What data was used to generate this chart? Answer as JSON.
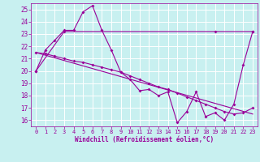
{
  "xlabel": "Windchill (Refroidissement éolien,°C)",
  "bg_color": "#c8f0f0",
  "line_color": "#990099",
  "grid_color": "#ffffff",
  "xlim": [
    -0.5,
    23.5
  ],
  "ylim": [
    15.5,
    25.5
  ],
  "yticks": [
    16,
    17,
    18,
    19,
    20,
    21,
    22,
    23,
    24,
    25
  ],
  "xticks": [
    0,
    1,
    2,
    3,
    4,
    5,
    6,
    7,
    8,
    9,
    10,
    11,
    12,
    13,
    14,
    15,
    16,
    17,
    18,
    19,
    20,
    21,
    22,
    23
  ],
  "series": [
    {
      "x": [
        0,
        1,
        2,
        3,
        4,
        5,
        6,
        7,
        8,
        9,
        10,
        11,
        12,
        13,
        14,
        15,
        16,
        17,
        18,
        19,
        20,
        21,
        22,
        23
      ],
      "y": [
        20.0,
        21.7,
        22.5,
        23.3,
        23.3,
        24.8,
        25.3,
        23.3,
        21.7,
        19.9,
        19.3,
        18.4,
        18.5,
        18.0,
        18.3,
        15.8,
        16.7,
        18.3,
        16.3,
        16.6,
        16.0,
        17.3,
        20.5,
        23.2
      ],
      "has_markers": true
    },
    {
      "x": [
        0,
        3,
        19,
        23
      ],
      "y": [
        20.0,
        23.2,
        23.2,
        23.2
      ],
      "has_markers": false
    },
    {
      "x": [
        0,
        1,
        2,
        3,
        4,
        5,
        6,
        7,
        8,
        9,
        10,
        11,
        12,
        13,
        14,
        15,
        16,
        17,
        18,
        19,
        20,
        21,
        22,
        23
      ],
      "y": [
        21.5,
        21.4,
        21.2,
        21.0,
        20.8,
        20.7,
        20.5,
        20.3,
        20.1,
        19.9,
        19.6,
        19.3,
        19.0,
        18.7,
        18.5,
        18.2,
        17.9,
        17.6,
        17.3,
        17.0,
        16.7,
        16.5,
        16.6,
        17.0
      ],
      "has_markers": true
    },
    {
      "x": [
        0,
        23
      ],
      "y": [
        21.5,
        16.5
      ],
      "has_markers": false
    }
  ]
}
